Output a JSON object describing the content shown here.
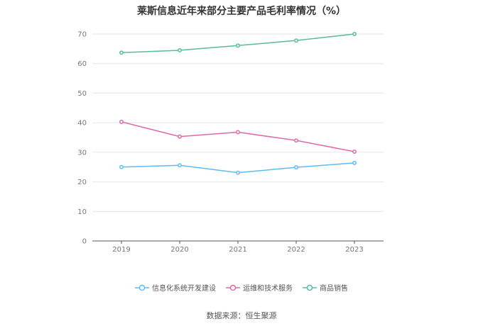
{
  "colors": {
    "series_1": "#5bbcf2",
    "series_2": "#dd6aa6",
    "series_3": "#57bb9d"
  },
  "source_text": "数据来源：恒生聚源",
  "chart_data": {
    "type": "line",
    "title": "莱斯信息近年来部分主要产品毛利率情况（%）",
    "xlabel": "",
    "ylabel": "",
    "categories": [
      "2019",
      "2020",
      "2021",
      "2022",
      "2023"
    ],
    "ylim": [
      0,
      70
    ],
    "yticks": [
      0,
      10,
      20,
      30,
      40,
      50,
      60,
      70
    ],
    "grid": true,
    "legend_position": "bottom",
    "series": [
      {
        "name": "信息化系统开发建设",
        "color": "#5bbcf2",
        "values": [
          25.0,
          25.6,
          23.1,
          24.9,
          26.4
        ]
      },
      {
        "name": "运维和技术服务",
        "color": "#dd6aa6",
        "values": [
          40.3,
          35.3,
          36.8,
          34.0,
          30.2
        ]
      },
      {
        "name": "商品销售",
        "color": "#57bb9d",
        "values": [
          63.7,
          64.5,
          66.1,
          67.8,
          70.0
        ]
      }
    ]
  }
}
